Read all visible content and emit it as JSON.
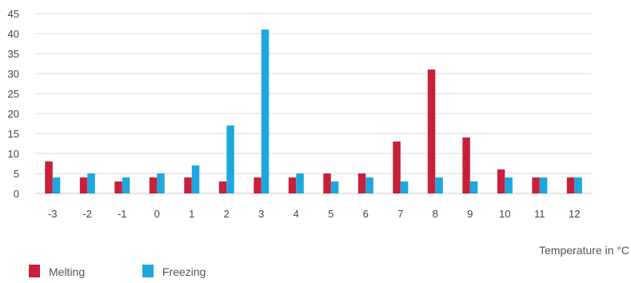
{
  "chart_data": {
    "type": "bar",
    "title": "",
    "xlabel": "Temperature in °C",
    "ylabel": "",
    "ylim": [
      0,
      45
    ],
    "yticks": [
      0,
      5,
      10,
      15,
      20,
      25,
      30,
      35,
      40,
      45
    ],
    "grid": true,
    "legend_position": "bottom-left",
    "categories": [
      "-3",
      "-2",
      "-1",
      "0",
      "1",
      "2",
      "3",
      "4",
      "5",
      "6",
      "7",
      "8",
      "9",
      "10",
      "11",
      "12"
    ],
    "series": [
      {
        "name": "Melting",
        "color": "#c8203a",
        "values": [
          8,
          4,
          3,
          4,
          4,
          3,
          4,
          4,
          5,
          5,
          13,
          31,
          14,
          6,
          4,
          4
        ]
      },
      {
        "name": "Freezing",
        "color": "#1ea7de",
        "values": [
          4,
          5,
          4,
          5,
          7,
          17,
          41,
          5,
          3,
          4,
          3,
          4,
          3,
          4,
          4,
          4
        ]
      }
    ]
  }
}
